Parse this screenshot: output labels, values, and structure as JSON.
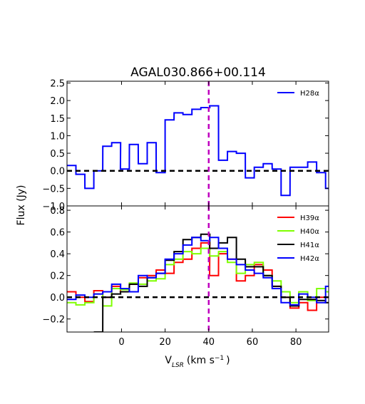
{
  "title": "AGAL030.866+00.114",
  "xlabel": "V",
  "xlabel_sub": "LSR",
  "xlabel_unit": "(km s",
  "xlabel_sup": "−1",
  "xlabel_close": ")",
  "ylabel": "Flux (Jy)",
  "colors": {
    "H28α": "#0000ff",
    "H39α": "#ff0000",
    "H40α": "#7fff00",
    "H41α": "#000000",
    "H42α": "#0000ff",
    "vline": "#bf00bf",
    "zeroline": "#000000"
  },
  "chart_data": [
    {
      "type": "line",
      "panel": "top",
      "title": "AGAL030.866+00.114",
      "xlim": [
        -25,
        95
      ],
      "ylim": [
        -1.0,
        2.55
      ],
      "yticks": [
        -1.0,
        -0.5,
        0.0,
        0.5,
        1.0,
        1.5,
        2.0,
        2.5
      ],
      "ytick_labels": [
        "−1.0",
        "−0.5",
        "0.0",
        "0.5",
        "1.0",
        "1.5",
        "2.0",
        "2.5"
      ],
      "reference_line_x": 40,
      "zero_line_y": 0.0,
      "legend_position": "top-right",
      "series": [
        {
          "name": "H28α",
          "color": "#0000ff",
          "bin_width": 4.08,
          "x": [
            -25.0,
            -20.9,
            -16.8,
            -12.7,
            -8.6,
            -4.5,
            -0.5,
            3.6,
            7.7,
            11.8,
            15.9,
            20.0,
            24.1,
            28.2,
            32.3,
            36.4,
            40.4,
            44.5,
            48.6,
            52.7,
            56.8,
            60.9,
            65.0,
            69.1,
            73.2,
            77.3,
            81.3,
            85.4,
            89.5,
            93.6
          ],
          "y": [
            0.15,
            -0.1,
            -0.5,
            0.0,
            0.7,
            0.8,
            0.05,
            0.75,
            0.2,
            0.8,
            -0.05,
            1.45,
            1.65,
            1.6,
            1.75,
            1.8,
            1.85,
            0.3,
            0.55,
            0.5,
            -0.2,
            0.1,
            0.2,
            0.05,
            -0.7,
            0.1,
            0.1,
            0.25,
            -0.05,
            -0.5
          ]
        }
      ]
    },
    {
      "type": "line",
      "panel": "bottom",
      "xlim": [
        -25,
        95
      ],
      "ylim": [
        -0.32,
        0.84
      ],
      "xticks": [
        0,
        20,
        40,
        60,
        80
      ],
      "xtick_labels": [
        "0",
        "20",
        "40",
        "60",
        "80"
      ],
      "yticks": [
        -0.2,
        0.0,
        0.2,
        0.4,
        0.6,
        0.8
      ],
      "ytick_labels": [
        "−0.2",
        "0.0",
        "0.2",
        "0.4",
        "0.6",
        "0.8"
      ],
      "reference_line_x": 40,
      "zero_line_y": 0.0,
      "legend_position": "top-right",
      "series": [
        {
          "name": "H39α",
          "color": "#ff0000",
          "bin_width": 4.08,
          "x": [
            -25.0,
            -20.9,
            -16.8,
            -12.7,
            -8.6,
            -4.5,
            -0.5,
            3.6,
            7.7,
            11.8,
            15.9,
            20.0,
            24.1,
            28.2,
            32.3,
            36.4,
            40.4,
            44.5,
            48.6,
            52.7,
            56.8,
            60.9,
            65.0,
            69.1,
            73.2,
            77.3,
            81.3,
            85.4,
            89.5,
            93.6
          ],
          "y": [
            0.05,
            0.0,
            -0.04,
            0.06,
            0.0,
            0.1,
            0.05,
            0.12,
            0.18,
            0.2,
            0.25,
            0.22,
            0.32,
            0.35,
            0.45,
            0.5,
            0.2,
            0.4,
            0.35,
            0.15,
            0.2,
            0.3,
            0.25,
            0.1,
            0.0,
            -0.1,
            -0.05,
            -0.12,
            0.0,
            0.0
          ]
        },
        {
          "name": "H40α",
          "color": "#7fff00",
          "bin_width": 4.08,
          "x": [
            -25.0,
            -20.9,
            -16.8,
            -12.7,
            -8.6,
            -4.5,
            -0.5,
            3.6,
            7.7,
            11.8,
            15.9,
            20.0,
            24.1,
            28.2,
            32.3,
            36.4,
            40.4,
            44.5,
            48.6,
            52.7,
            56.8,
            60.9,
            65.0,
            69.1,
            73.2,
            77.3,
            81.3,
            85.4,
            89.5,
            93.6
          ],
          "y": [
            -0.05,
            -0.07,
            -0.05,
            0.03,
            -0.08,
            0.08,
            0.07,
            0.13,
            0.12,
            0.15,
            0.17,
            0.3,
            0.35,
            0.42,
            0.4,
            0.45,
            0.38,
            0.42,
            0.32,
            0.22,
            0.3,
            0.32,
            0.2,
            0.15,
            0.05,
            -0.05,
            0.05,
            -0.03,
            0.08,
            0.05
          ]
        },
        {
          "name": "H41α",
          "color": "#000000",
          "bin_width": 4.08,
          "x": [
            -25.0,
            -20.9,
            -16.8,
            -12.7,
            -8.6,
            -4.5,
            -0.5,
            3.6,
            7.7,
            11.8,
            15.9,
            20.0,
            24.1,
            28.2,
            32.3,
            36.4,
            40.4,
            44.5,
            48.6,
            52.7,
            56.8,
            60.9,
            65.0,
            69.1,
            73.2,
            77.3,
            81.3,
            85.4,
            89.5,
            93.6
          ],
          "y": [
            null,
            null,
            null,
            -0.32,
            0.0,
            0.03,
            0.05,
            0.12,
            0.1,
            0.18,
            0.22,
            0.34,
            0.42,
            0.53,
            0.55,
            0.58,
            0.45,
            0.5,
            0.55,
            0.35,
            0.28,
            0.28,
            0.2,
            0.1,
            0.0,
            -0.08,
            -0.02,
            -0.02,
            -0.03,
            -0.05
          ]
        },
        {
          "name": "H42α",
          "color": "#0000ff",
          "bin_width": 4.08,
          "x": [
            -25.0,
            -20.9,
            -16.8,
            -12.7,
            -8.6,
            -4.5,
            -0.5,
            3.6,
            7.7,
            11.8,
            15.9,
            20.0,
            24.1,
            28.2,
            32.3,
            36.4,
            40.4,
            44.5,
            48.6,
            52.7,
            56.8,
            60.9,
            65.0,
            69.1,
            73.2,
            77.3,
            81.3,
            85.4,
            89.5,
            93.6
          ],
          "y": [
            -0.02,
            0.02,
            0.0,
            0.03,
            0.05,
            0.12,
            0.08,
            0.05,
            0.2,
            0.18,
            0.22,
            0.35,
            0.4,
            0.48,
            0.55,
            0.52,
            0.55,
            0.45,
            0.35,
            0.3,
            0.25,
            0.22,
            0.18,
            0.08,
            -0.05,
            -0.07,
            0.03,
            0.0,
            -0.05,
            0.1
          ]
        }
      ]
    }
  ]
}
